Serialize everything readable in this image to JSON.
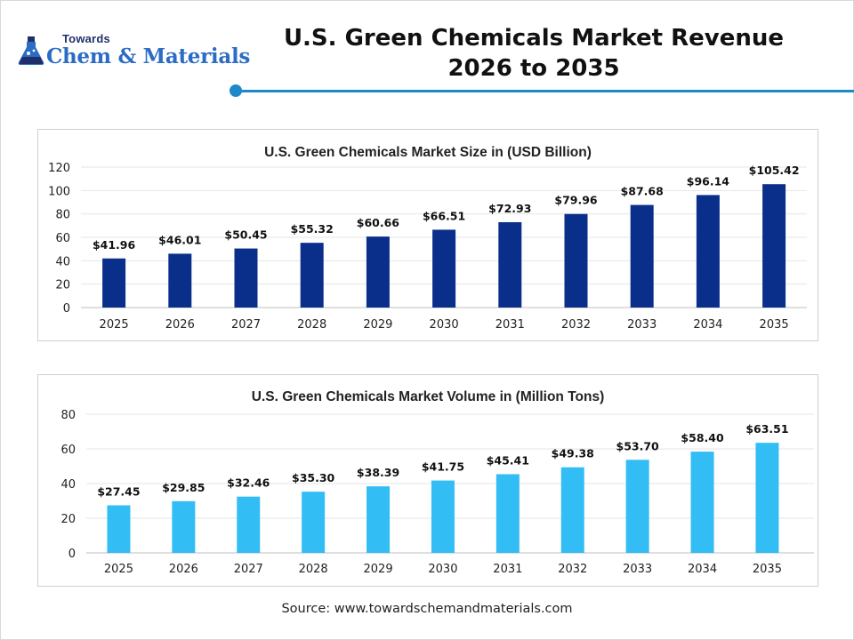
{
  "brand": {
    "top_text": "Towards",
    "main_text": "Chem & Materials",
    "icon": "flask-icon",
    "color": "#2b6cc4"
  },
  "header": {
    "title_line1": "U.S. Green Chemicals Market Revenue",
    "title_line2": "2026 to 2035",
    "accent_color": "#1e88c8"
  },
  "chart_data": [
    {
      "type": "bar",
      "title": "U.S. Green Chemicals Market Size in (USD Billion)",
      "categories": [
        "2025",
        "2026",
        "2027",
        "2028",
        "2029",
        "2030",
        "2031",
        "2032",
        "2033",
        "2034",
        "2035"
      ],
      "values": [
        41.96,
        46.01,
        50.45,
        55.32,
        60.66,
        66.51,
        72.93,
        79.96,
        87.68,
        96.14,
        105.42
      ],
      "data_labels": [
        "$41.96",
        "$46.01",
        "$50.45",
        "$55.32",
        "$60.66",
        "$66.51",
        "$72.93",
        "$79.96",
        "$87.68",
        "$96.14",
        "$105.42"
      ],
      "ylim": [
        0,
        120
      ],
      "yticks": [
        0,
        20,
        40,
        60,
        80,
        100,
        120
      ],
      "grid": true,
      "legend": "none",
      "bar_color": "#0a2f8a"
    },
    {
      "type": "bar",
      "title": "U.S. Green Chemicals Market Volume in (Million Tons)",
      "categories": [
        "2025",
        "2026",
        "2027",
        "2028",
        "2029",
        "2030",
        "2031",
        "2032",
        "2033",
        "2034",
        "2035"
      ],
      "values": [
        27.45,
        29.85,
        32.46,
        35.3,
        38.39,
        41.75,
        45.41,
        49.38,
        53.7,
        58.4,
        63.51
      ],
      "data_labels": [
        "$27.45",
        "$29.85",
        "$32.46",
        "$35.30",
        "$38.39",
        "$41.75",
        "$45.41",
        "$49.38",
        "$53.70",
        "$58.40",
        "$63.51"
      ],
      "ylim": [
        0,
        80
      ],
      "yticks": [
        0,
        20,
        40,
        60,
        80
      ],
      "grid": true,
      "legend": "none",
      "bar_color": "#33bdf5"
    }
  ],
  "footer": {
    "source": "Source: www.towardschemandmaterials.com"
  }
}
